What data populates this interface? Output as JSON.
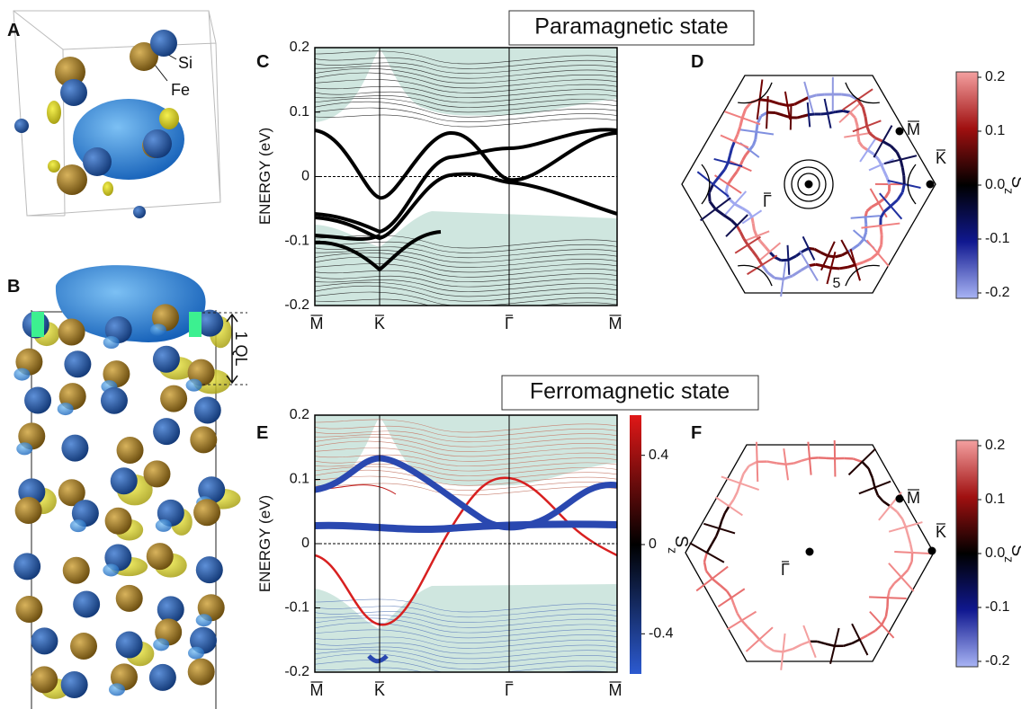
{
  "figure": {
    "panels": [
      {
        "label": "A",
        "annotations": [
          "Si",
          "Fe"
        ]
      },
      {
        "label": "B",
        "annotation": "1 QL"
      },
      {
        "label": "C",
        "title": "Paramagnetic state",
        "y_label": "ENERGY (eV)",
        "ylim": [
          -0.2,
          0.2
        ],
        "yticks": [
          -0.2,
          -0.1,
          0,
          0.1,
          0.2
        ],
        "x_labels": [
          "M",
          "K",
          "Γ",
          "M"
        ]
      },
      {
        "label": "D",
        "points": [
          "M",
          "K",
          "Γ"
        ],
        "annotation": "5",
        "colorbar": {
          "label": "S",
          "subscript": "z",
          "lim": [
            -0.21,
            0.21
          ],
          "ticks": [
            -0.2,
            -0.1,
            {
              "value": 0,
              "label": "0.0"
            },
            0.1,
            0.2
          ]
        }
      },
      {
        "label": "E",
        "title": "Ferromagnetic state",
        "y_label": "ENERGY (eV)",
        "ylim": [
          -0.2,
          0.2
        ],
        "yticks": [
          -0.2,
          -0.1,
          0,
          0.1,
          0.2
        ],
        "x_labels": [
          "M",
          "K",
          "Γ",
          "M"
        ],
        "colorbar": {
          "label": "S",
          "subscript": "z",
          "lim": [
            -0.58,
            0.58
          ],
          "ticks": [
            -0.4,
            0,
            0.4
          ]
        }
      },
      {
        "label": "F",
        "points": [
          "M",
          "K",
          "Γ"
        ],
        "colorbar": {
          "label": "S",
          "subscript": "z",
          "lim": [
            -0.21,
            0.21
          ],
          "ticks": [
            -0.2,
            -0.1,
            {
              "value": 0,
              "label": "0.0"
            },
            0.1,
            0.2
          ]
        }
      }
    ]
  }
}
